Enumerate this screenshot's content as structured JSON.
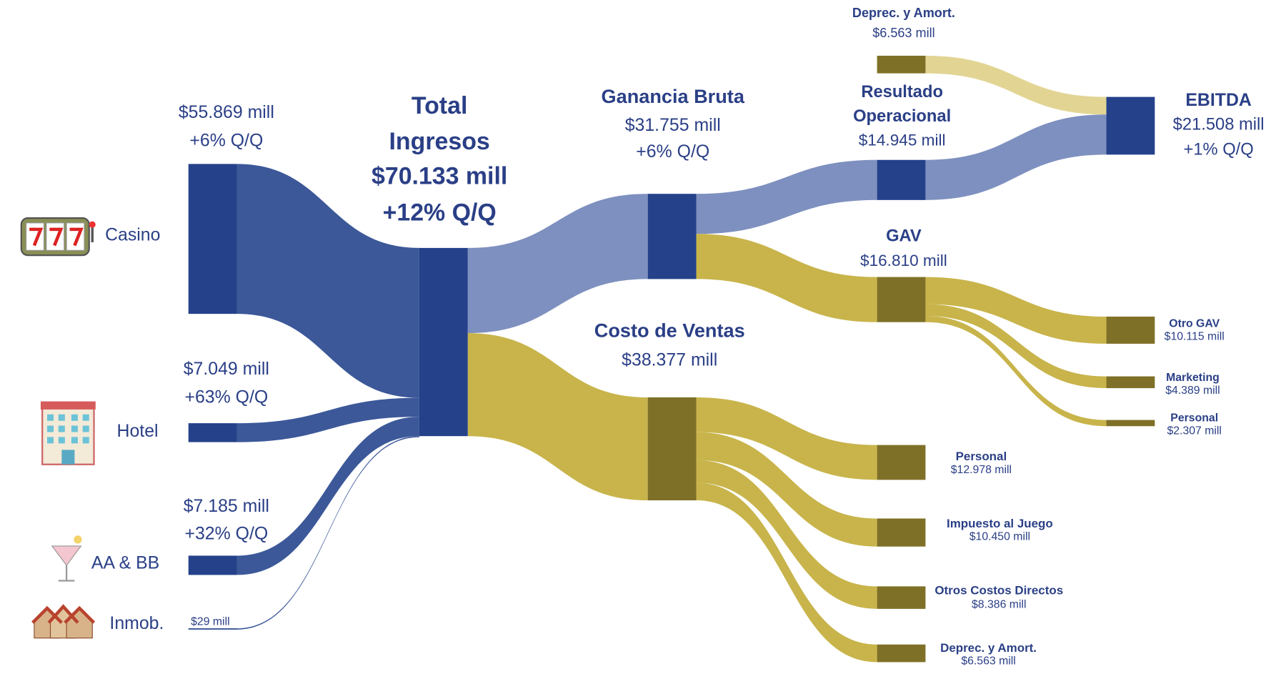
{
  "chart_data": {
    "type": "sankey",
    "nodes": [
      {
        "name": "Casino",
        "value": 55869,
        "value_label": "$55.869 mill",
        "change": "+6% Q/Q",
        "color": "#24418a"
      },
      {
        "name": "Hotel",
        "value": 7049,
        "value_label": "$7.049 mill",
        "change": "+63% Q/Q",
        "color": "#24418a"
      },
      {
        "name": "AA & BB",
        "value": 7185,
        "value_label": "$7.185 mill",
        "change": "+32% Q/Q",
        "color": "#24418a"
      },
      {
        "name": "Inmob.",
        "value": 29,
        "value_label": "$29 mill",
        "color": "#24418a"
      },
      {
        "name": [
          "Total",
          "Ingresos"
        ],
        "value": 70133,
        "value_label": "$70.133 mill",
        "change": "+12% Q/Q",
        "color": "#24418a"
      },
      {
        "name": "Ganancia Bruta",
        "value": 31755,
        "value_label": "$31.755 mill",
        "change": "+6% Q/Q",
        "color": "#24418a"
      },
      {
        "name": "Costo de Ventas",
        "value": 38377,
        "value_label": "$38.377 mill",
        "color": "#7f7028"
      },
      {
        "name": [
          "Resultado",
          "Operacional"
        ],
        "value": 14945,
        "value_label": "$14.945 mill",
        "color": "#24418a"
      },
      {
        "name": "GAV",
        "value": 16810,
        "value_label": "$16.810 mill",
        "color": "#7f7028"
      },
      {
        "name": "Deprec. y Amort.",
        "value": 6563,
        "value_label": "$6.563 mill",
        "color": "#7f7028"
      },
      {
        "name": "EBITDA",
        "value": 21508,
        "value_label": "$21.508 mill",
        "change": "+1% Q/Q",
        "color": "#24418a"
      },
      {
        "name": "Otro GAV",
        "value": 10115,
        "value_label": "$10.115 mill",
        "color": "#7f7028"
      },
      {
        "name": "Marketing",
        "value": 4389,
        "value_label": "$4.389 mill",
        "color": "#7f7028"
      },
      {
        "name": "Personal",
        "value": 2307,
        "value_label": "$2.307 mill",
        "color": "#7f7028"
      },
      {
        "name": "Personal",
        "value": 12978,
        "value_label": "$12.978 mill",
        "color": "#7f7028"
      },
      {
        "name": "Impuesto al Juego",
        "value": 10450,
        "value_label": "$10.450 mill",
        "color": "#7f7028"
      },
      {
        "name": "Otros Costos Directos",
        "value": 8386,
        "value_label": "$8.386 mill",
        "color": "#7f7028"
      },
      {
        "name": "Deprec. y Amort.",
        "value": 6563,
        "value_label": "$6.563 mill",
        "color": "#7f7028"
      }
    ],
    "links": [
      {
        "source": 0,
        "target": 4,
        "color": "#3c5899"
      },
      {
        "source": 1,
        "target": 4,
        "color": "#3c5899"
      },
      {
        "source": 2,
        "target": 4,
        "color": "#3c5899"
      },
      {
        "source": 3,
        "target": 4,
        "color": "#3c5899"
      },
      {
        "source": 4,
        "target": 5,
        "color": "#7e90bf"
      },
      {
        "source": 4,
        "target": 6,
        "color": "#c8b44b"
      },
      {
        "source": 5,
        "target": 7,
        "color": "#7e90bf"
      },
      {
        "source": 5,
        "target": 8,
        "color": "#c8b44b"
      },
      {
        "source": 9,
        "target": 10,
        "color": "#e2d594"
      },
      {
        "source": 7,
        "target": 10,
        "color": "#7e90bf"
      },
      {
        "source": 8,
        "target": 11,
        "color": "#c8b44b"
      },
      {
        "source": 8,
        "target": 12,
        "color": "#c8b44b"
      },
      {
        "source": 8,
        "target": 13,
        "color": "#c8b44b"
      },
      {
        "source": 6,
        "target": 14,
        "color": "#c8b44b"
      },
      {
        "source": 6,
        "target": 15,
        "color": "#c8b44b"
      },
      {
        "source": 6,
        "target": 16,
        "color": "#c8b44b"
      },
      {
        "source": 6,
        "target": 17,
        "color": "#c8b44b"
      }
    ]
  }
}
